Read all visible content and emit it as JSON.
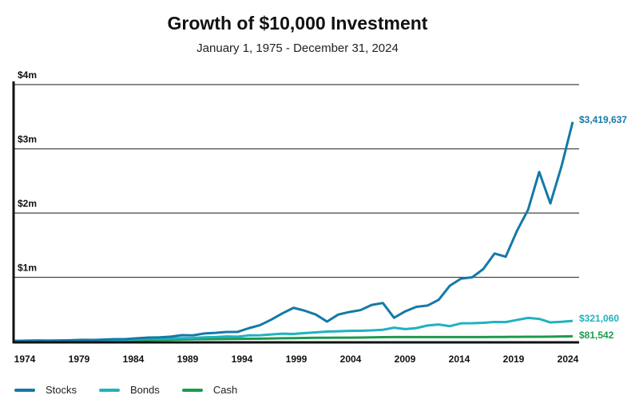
{
  "chart_data": {
    "type": "line",
    "title": "Growth of $10,000 Investment",
    "subtitle": "January 1, 1975 - December 31, 2024",
    "xlabel": "",
    "ylabel": "",
    "ylim": [
      0,
      4000000
    ],
    "yticks": [
      {
        "value": 1000000,
        "label": "$1m"
      },
      {
        "value": 2000000,
        "label": "$2m"
      },
      {
        "value": 3000000,
        "label": "$3m"
      },
      {
        "value": 4000000,
        "label": "$4m"
      }
    ],
    "xticks": [
      "1974",
      "1979",
      "1984",
      "1989",
      "1994",
      "1999",
      "2004",
      "2009",
      "2014",
      "2019",
      "2024"
    ],
    "grid": true,
    "legend_position": "bottom-left",
    "x": [
      1974,
      1975,
      1976,
      1977,
      1978,
      1979,
      1980,
      1981,
      1982,
      1983,
      1984,
      1985,
      1986,
      1987,
      1988,
      1989,
      1990,
      1991,
      1992,
      1993,
      1994,
      1995,
      1996,
      1997,
      1998,
      1999,
      2000,
      2001,
      2002,
      2003,
      2004,
      2005,
      2006,
      2007,
      2008,
      2009,
      2010,
      2011,
      2012,
      2013,
      2014,
      2015,
      2016,
      2017,
      2018,
      2019,
      2020,
      2021,
      2022,
      2023,
      2024
    ],
    "series": [
      {
        "name": "Stocks",
        "color": "#1479a8",
        "end_label": "$3,419,637",
        "values": [
          10000,
          13700,
          17000,
          15800,
          16800,
          19900,
          26300,
          25000,
          30400,
          37200,
          39500,
          52000,
          61700,
          64900,
          75700,
          99600,
          96500,
          125900,
          135500,
          149200,
          151200,
          208000,
          255700,
          341000,
          438400,
          525000,
          480000,
          420000,
          310000,
          420000,
          460000,
          490000,
          570000,
          600000,
          370000,
          470000,
          540000,
          560000,
          650000,
          870000,
          980000,
          1000000,
          1130000,
          1370000,
          1320000,
          1720000,
          2050000,
          2640000,
          2150000,
          2730000,
          3419637
        ]
      },
      {
        "name": "Bonds",
        "color": "#1fb2bf",
        "end_label": "$321,060",
        "values": [
          10000,
          10900,
          12700,
          12900,
          13000,
          13300,
          13700,
          16300,
          21800,
          23200,
          26800,
          35200,
          42200,
          41400,
          45300,
          52800,
          56200,
          65900,
          70000,
          79300,
          76300,
          95600,
          98200,
          110000,
          122700,
          117800,
          132400,
          142300,
          155700,
          159400,
          166000,
          168300,
          173500,
          183000,
          216000,
          193700,
          209600,
          250200,
          265600,
          239400,
          283900,
          285300,
          291500,
          305100,
          302700,
          336200,
          367600,
          352600,
          297700,
          306900,
          321060
        ]
      },
      {
        "name": "Cash",
        "color": "#1c9a4d",
        "end_label": "$81,542",
        "values": [
          10000,
          10600,
          11200,
          11800,
          12600,
          13900,
          15500,
          17700,
          19600,
          21300,
          23400,
          25100,
          26600,
          28100,
          30000,
          32500,
          35100,
          37100,
          38400,
          39600,
          41200,
          43400,
          45600,
          48000,
          50500,
          52800,
          56000,
          58300,
          59300,
          59900,
          60700,
          62600,
          65600,
          68700,
          69700,
          69800,
          69900,
          69900,
          70000,
          70000,
          70000,
          70000,
          70200,
          70800,
          72100,
          73700,
          74200,
          74200,
          75400,
          79300,
          81542
        ]
      }
    ]
  }
}
